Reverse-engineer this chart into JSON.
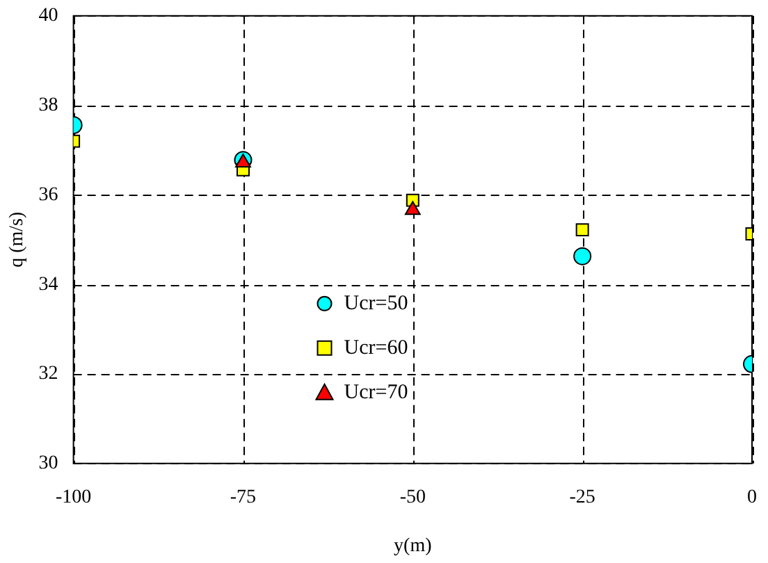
{
  "chart_data": {
    "type": "scatter",
    "xlabel": "y(m)",
    "ylabel": "q (m/s)",
    "xlim": [
      -100,
      0
    ],
    "xticks": [
      -100,
      -75,
      -50,
      -25,
      0
    ],
    "ylim": [
      30,
      40
    ],
    "yticks": [
      30,
      32,
      34,
      36,
      38,
      40
    ],
    "grid": true,
    "line_style": "dashed",
    "legend": "bottom",
    "series": [
      {
        "name": "Ucr=50",
        "color": "#00ffff",
        "marker": "circle",
        "x": [
          -100,
          -75,
          -50,
          -25,
          0
        ],
        "values": [
          37.56,
          36.78,
          null,
          34.63,
          32.22
        ]
      },
      {
        "name": "Ucr=60",
        "color": "#ffff00",
        "marker": "square",
        "x": [
          -100,
          -75,
          -50,
          -25,
          0
        ],
        "values": [
          37.2,
          36.56,
          35.88,
          35.22,
          35.13
        ]
      },
      {
        "name": "Ucr=70",
        "color": "#ff0000",
        "marker": "triangle",
        "x": [
          -75,
          -50
        ],
        "values": [
          36.72,
          35.66
        ]
      }
    ]
  }
}
